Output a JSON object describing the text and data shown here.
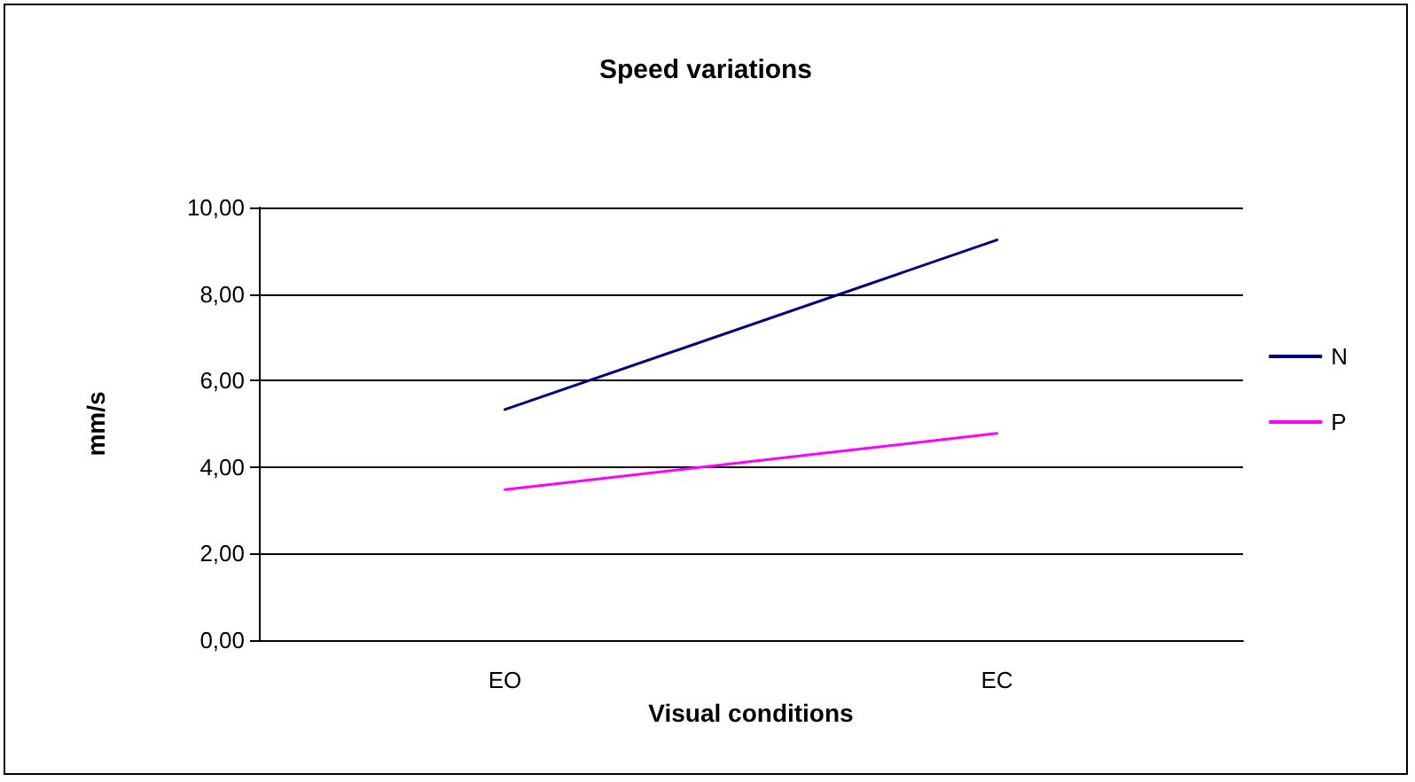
{
  "chart_data": {
    "type": "line",
    "title": "Speed variations",
    "xlabel": "Visual conditions",
    "ylabel": "mm/s",
    "categories": [
      "EO",
      "EC"
    ],
    "series": [
      {
        "name": "N",
        "color": "#000080",
        "values": [
          5.33,
          9.25
        ]
      },
      {
        "name": "P",
        "color": "#ff00ff",
        "values": [
          3.48,
          4.78
        ]
      }
    ],
    "ylim": [
      0,
      10
    ],
    "yticks": [
      {
        "value": 0,
        "label": "0,00"
      },
      {
        "value": 2,
        "label": "2,00"
      },
      {
        "value": 4,
        "label": "4,00"
      },
      {
        "value": 6,
        "label": "6,00"
      },
      {
        "value": 8,
        "label": "8,00"
      },
      {
        "value": 10,
        "label": "10,00"
      }
    ],
    "grid": "y",
    "legend": "right",
    "marker": "none",
    "line_style": "solid"
  }
}
